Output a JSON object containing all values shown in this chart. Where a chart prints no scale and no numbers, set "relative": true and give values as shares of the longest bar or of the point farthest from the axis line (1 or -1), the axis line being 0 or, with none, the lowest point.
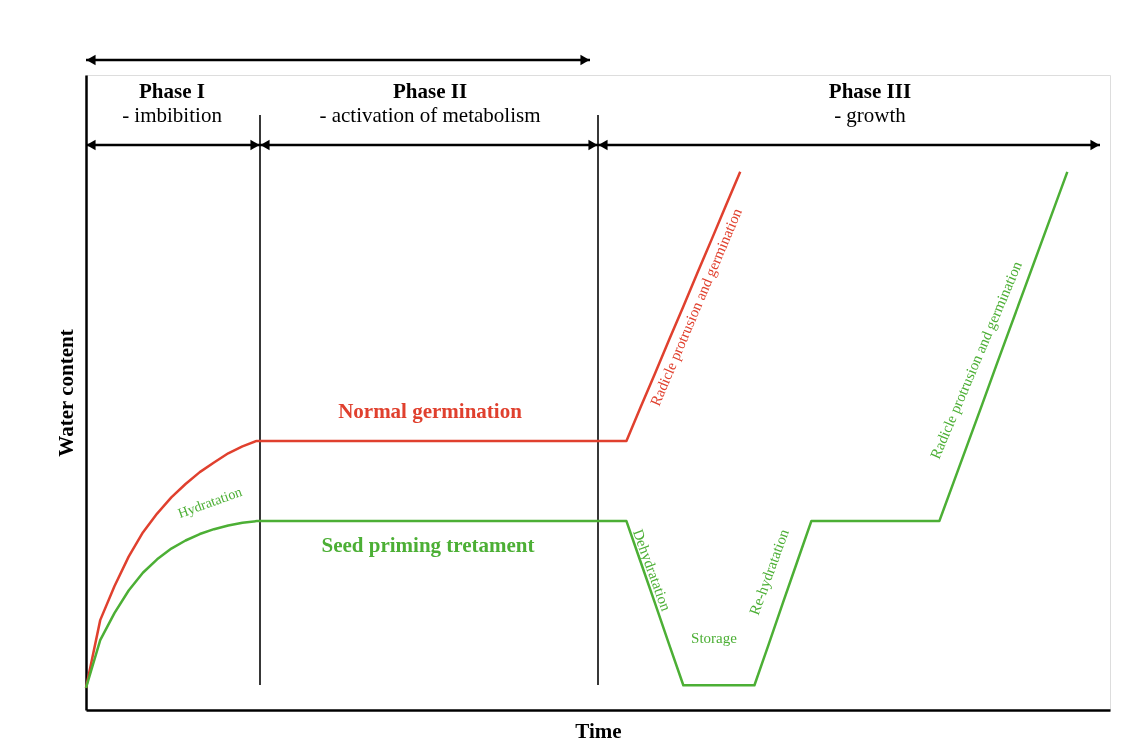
{
  "chart_data": {
    "type": "line",
    "relative": true,
    "xlabel": "Time",
    "ylabel": "Water content",
    "tick_labels": false,
    "legend": false,
    "marker": "none",
    "line_style": "solid",
    "grid": false,
    "categories": [
      null,
      null,
      null,
      null,
      null,
      null,
      null,
      null,
      null,
      null,
      null,
      null,
      null,
      null,
      null,
      null,
      null,
      null,
      null,
      null,
      null,
      null,
      null,
      null,
      null,
      null,
      null,
      null,
      null,
      null,
      null,
      null,
      null,
      null,
      null,
      null,
      null,
      null,
      null,
      null,
      null,
      null,
      null,
      null,
      null,
      null,
      null,
      null,
      null,
      null,
      null,
      null,
      null,
      null,
      null,
      null,
      null,
      null,
      null,
      null,
      null,
      null,
      null,
      null,
      null,
      null,
      null,
      null,
      null,
      null,
      null,
      null,
      null
    ],
    "series": [
      {
        "name": "Normal germination",
        "color": "#e0402e",
        "values": [
          0.041,
          0.167,
          0.23,
          0.285,
          0.33,
          0.365,
          0.395,
          0.42,
          0.442,
          0.46,
          0.477,
          0.49,
          0.5,
          0.5,
          0.5,
          0.5,
          0.5,
          0.5,
          0.5,
          0.5,
          0.5,
          0.5,
          0.5,
          0.5,
          0.5,
          0.5,
          0.5,
          0.5,
          0.5,
          0.5,
          0.5,
          0.5,
          0.5,
          0.5,
          0.5,
          0.5,
          0.5,
          0.5,
          0.5,
          0.563,
          0.625,
          0.688,
          0.75,
          0.813,
          0.875,
          0.938,
          1.0,
          null,
          null,
          null,
          null,
          null,
          null,
          null,
          null,
          null,
          null,
          null,
          null,
          null,
          null,
          null,
          null,
          null,
          null,
          null,
          null,
          null,
          null,
          null,
          null,
          null,
          null
        ]
      },
      {
        "name": "Seed priming tretament",
        "color": "#4caf35",
        "values": [
          0.041,
          0.13,
          0.18,
          0.222,
          0.255,
          0.28,
          0.3,
          0.315,
          0.327,
          0.336,
          0.343,
          0.348,
          0.351,
          0.351,
          0.351,
          0.351,
          0.351,
          0.351,
          0.351,
          0.351,
          0.351,
          0.351,
          0.351,
          0.351,
          0.351,
          0.351,
          0.351,
          0.351,
          0.351,
          0.351,
          0.351,
          0.351,
          0.351,
          0.351,
          0.351,
          0.351,
          0.351,
          0.351,
          0.351,
          0.275,
          0.199,
          0.122,
          0.046,
          0.046,
          0.046,
          0.046,
          0.046,
          0.046,
          0.122,
          0.199,
          0.275,
          0.351,
          0.351,
          0.351,
          0.351,
          0.351,
          0.351,
          0.351,
          0.351,
          0.351,
          0.351,
          0.423,
          0.495,
          0.567,
          0.64,
          0.712,
          0.784,
          0.856,
          0.928,
          1.0,
          null,
          null,
          null
        ]
      }
    ],
    "annotations": [
      "Phase I",
      "- imbibition",
      "Phase II",
      "- activation of metabolism",
      "Phase III",
      "- growth",
      "Hydratation",
      "Dehydratation",
      "Storage",
      "Re-hydratation",
      "Radicle protrusion and germination",
      "Radicle protrusion and germination"
    ]
  }
}
